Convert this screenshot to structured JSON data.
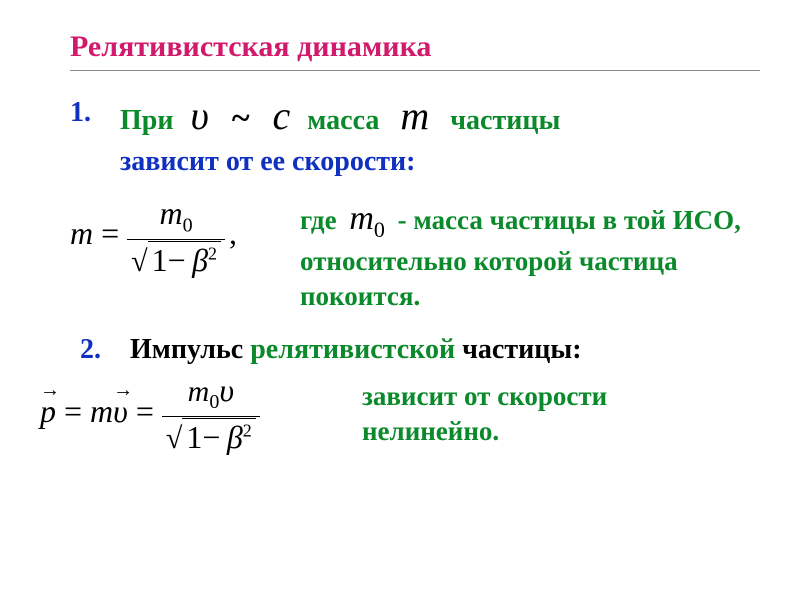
{
  "title": "Релятивистская  динамика",
  "item1": {
    "num": "1.",
    "line1_pri": "При",
    "sym_v": "υ",
    "tilde": "~",
    "sym_c": "с",
    "massa": "масса",
    "sym_m": "m",
    "chastitsy": "частицы",
    "line2": "зависит от ее скорости:"
  },
  "eq1": {
    "lhs": "m",
    "eq": " = ",
    "num_m": "m",
    "num_0": "0",
    "sqrt": "√",
    "rad_1": "1",
    "rad_minus": "−",
    "rad_beta": "β",
    "rad_sq": "2",
    "comma": ","
  },
  "expl1": {
    "gde": "где",
    "m0_m": "m",
    "m0_0": "0",
    "rest": "- масса частицы в той ИСО, относительно которой частица покоится."
  },
  "item2": {
    "num": "2.",
    "label_impuls": "Импульс ",
    "label_rel": "релятивистской",
    "label_part": " частицы:"
  },
  "eq2": {
    "p": "p",
    "arrow": "→",
    "eq1": " = ",
    "m": "m",
    "v": "υ",
    "eq2": " = ",
    "num_m": "m",
    "num_0": "0",
    "num_v": "υ",
    "sqrt": "√",
    "rad_1": "1",
    "rad_minus": "−",
    "rad_beta": "β",
    "rad_sq": "2"
  },
  "expl2": {
    "line1": "зависит от скорости",
    "line2": "нелинейно."
  },
  "colors": {
    "title": "#d11a6b",
    "green": "#0a8a2a",
    "blue": "#1030c0",
    "black": "#000000"
  }
}
